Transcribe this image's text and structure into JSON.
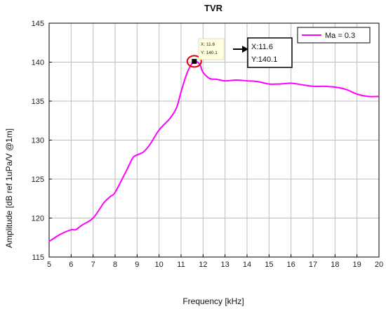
{
  "chart_data": {
    "type": "line",
    "title": "TVR",
    "xlabel": "Frequency [kHz]",
    "ylabel": "Amplitude [dB ref 1uPa/V @1m]",
    "xlim": [
      5,
      20
    ],
    "ylim": [
      115,
      145
    ],
    "xticks": [
      5,
      6,
      7,
      8,
      9,
      10,
      11,
      12,
      13,
      14,
      15,
      16,
      17,
      18,
      19,
      20
    ],
    "yticks": [
      115,
      120,
      125,
      130,
      135,
      140,
      145
    ],
    "grid": true,
    "legend_position": "top-right",
    "series": [
      {
        "name": "Ma = 0.3",
        "color": "#ff00ff",
        "x": [
          5.0,
          5.5,
          6.0,
          6.2,
          6.5,
          7.0,
          7.5,
          7.8,
          8.0,
          8.5,
          8.8,
          9.0,
          9.3,
          9.6,
          10.0,
          10.5,
          10.8,
          11.0,
          11.3,
          11.6,
          11.85,
          12.0,
          12.3,
          12.6,
          13.0,
          13.5,
          14.0,
          14.5,
          15.0,
          15.5,
          16.0,
          16.5,
          17.0,
          17.5,
          18.0,
          18.5,
          19.0,
          19.5,
          20.0
        ],
        "y": [
          117.0,
          117.9,
          118.5,
          118.5,
          119.1,
          120.0,
          122.0,
          122.8,
          123.3,
          126.0,
          127.7,
          128.1,
          128.5,
          129.5,
          131.3,
          132.8,
          134.2,
          136.2,
          138.8,
          140.1,
          139.7,
          138.7,
          137.9,
          137.8,
          137.6,
          137.7,
          137.6,
          137.5,
          137.2,
          137.2,
          137.3,
          137.1,
          136.9,
          136.9,
          136.8,
          136.5,
          135.9,
          135.6,
          135.6
        ]
      }
    ],
    "annotations": [
      {
        "type": "datatip",
        "x_text": "X: 11.6",
        "y_text": "Y: 140.1"
      },
      {
        "type": "datatip-box",
        "x_text": "X:11.6",
        "y_text": "Y:140.1"
      }
    ],
    "marker": {
      "x": 11.6,
      "y": 140.1
    }
  }
}
